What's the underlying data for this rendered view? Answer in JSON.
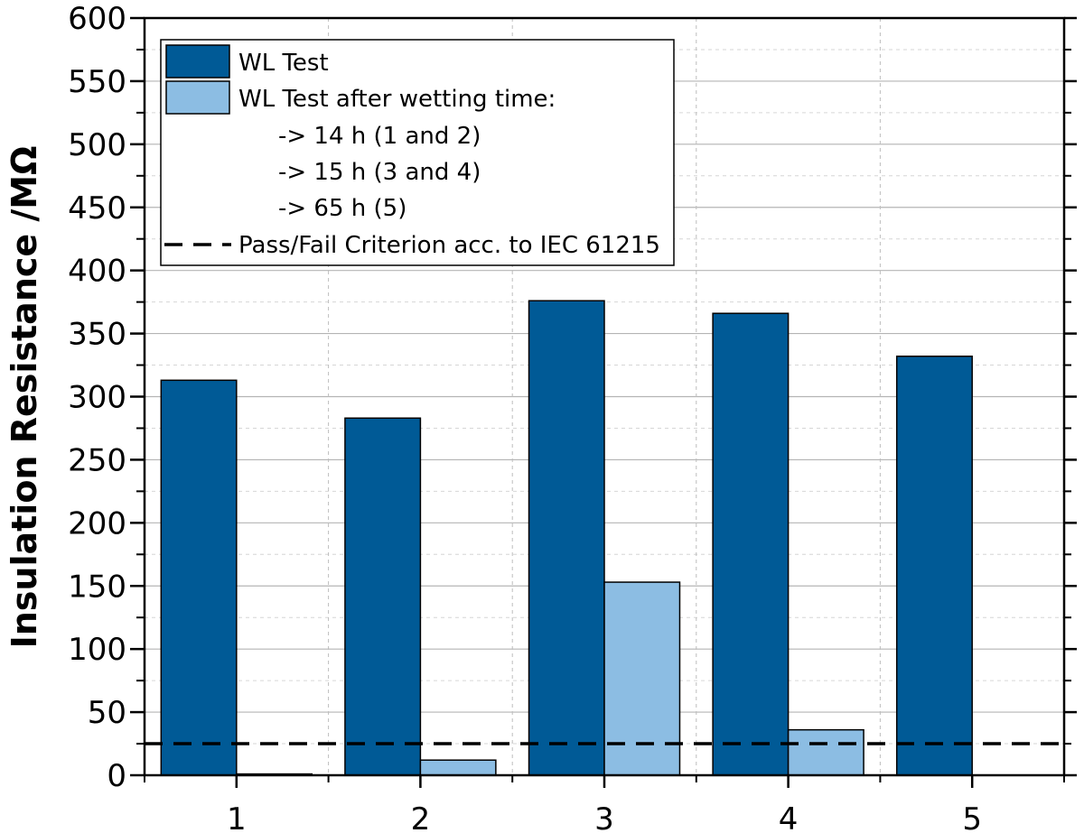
{
  "chart_data": {
    "type": "bar",
    "title": "",
    "xlabel": "",
    "ylabel": "Insulation Resistance /MΩ",
    "categories": [
      "1",
      "2",
      "3",
      "4",
      "5"
    ],
    "ylim": [
      0,
      600
    ],
    "yticks": [
      0,
      50,
      100,
      150,
      200,
      250,
      300,
      350,
      400,
      450,
      500,
      550,
      600
    ],
    "series": [
      {
        "name": "WL Test",
        "color": "#005A96",
        "values": [
          313,
          283,
          376,
          366,
          332
        ]
      },
      {
        "name": "WL Test after wetting time:",
        "color": "#8CBDE3",
        "values": [
          1,
          12,
          153,
          36,
          0
        ]
      }
    ],
    "reference_line": {
      "name": "Pass/Fail Criterion acc. to IEC 61215",
      "value": 25,
      "style": "dashed",
      "color": "#000000"
    },
    "legend_notes": [
      "-> 14 h (1 and 2)",
      "-> 15 h (3 and 4)",
      "-> 65 h (5)"
    ],
    "legend_position": "top-left",
    "grid": true
  }
}
